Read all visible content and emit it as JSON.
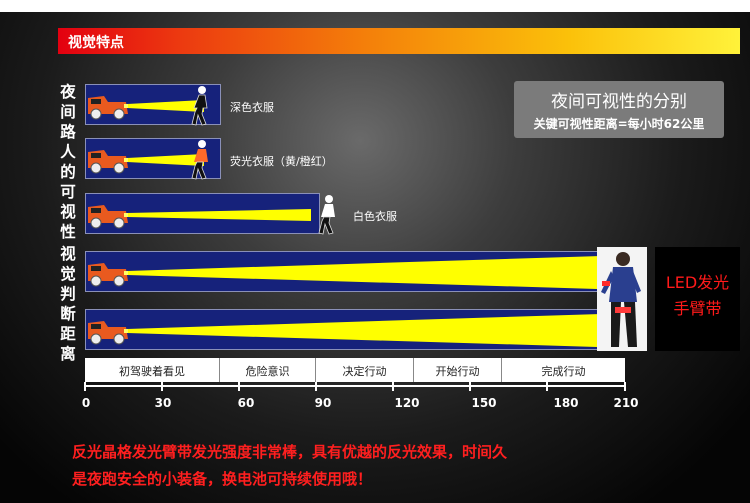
{
  "header": {
    "title": "视觉特点"
  },
  "side_labels": {
    "night_pedestrians": "夜间路人的可视性",
    "judge_distance": "视觉判断距离"
  },
  "rows": [
    {
      "label": "深色衣服",
      "shirt_color": "#111111"
    },
    {
      "label": "荧光衣服（黄/橙红）",
      "shirt_color": "#ff6a2a"
    },
    {
      "label": "白色衣服",
      "shirt_color": "#ffffff"
    }
  ],
  "info": {
    "title": "夜间可视性的分别",
    "subtitle": "关键可视性距离=每小时62公里"
  },
  "led_label": {
    "line1": "LED发光",
    "line2": "手臂带"
  },
  "phases": [
    "初驾驶着看见",
    "危险意识",
    "决定行动",
    "开始行动",
    "完成行动"
  ],
  "axis_ticks": [
    "0",
    "30",
    "60",
    "90",
    "120",
    "150",
    "180",
    "210"
  ],
  "footer": {
    "line1": "反光晶格发光臂带发光强度非常棒，具有优越的反光效果，时间久",
    "line2": "是夜跑安全的小装备，换电池可持续使用哦！"
  },
  "colors": {
    "bar": "#16227b",
    "beam": "#ffff00",
    "title_start": "#e30010",
    "title_end": "#fff23a",
    "footer_text": "#ff1f1f"
  }
}
